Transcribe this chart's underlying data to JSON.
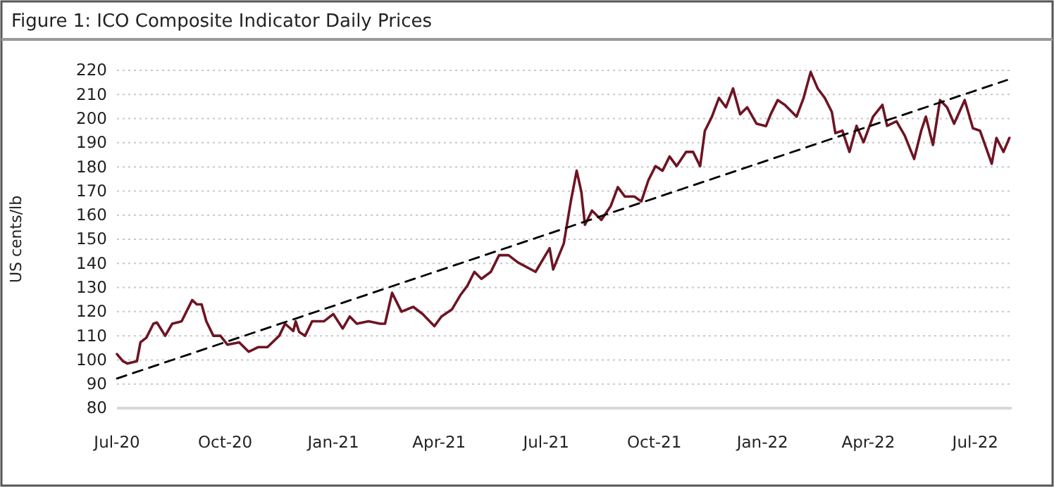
{
  "chart_data": {
    "type": "line",
    "title": "Figure 1: ICO Composite Indicator Daily Prices",
    "ylabel": "US cents/lb",
    "xlim": [
      "2020-07-01",
      "2022-08-01"
    ],
    "xticks": [
      {
        "value": "2020-07-01",
        "label": "Jul-20"
      },
      {
        "value": "2020-10-01",
        "label": "Oct-20"
      },
      {
        "value": "2021-01-01",
        "label": "Jan-21"
      },
      {
        "value": "2021-04-01",
        "label": "Apr-21"
      },
      {
        "value": "2021-07-01",
        "label": "Jul-21"
      },
      {
        "value": "2021-10-01",
        "label": "Oct-21"
      },
      {
        "value": "2022-01-01",
        "label": "Jan-22"
      },
      {
        "value": "2022-04-01",
        "label": "Apr-22"
      },
      {
        "value": "2022-07-01",
        "label": "Jul-22"
      }
    ],
    "ylim": [
      80,
      220
    ],
    "yticks": [
      80,
      90,
      100,
      110,
      120,
      130,
      140,
      150,
      160,
      170,
      180,
      190,
      200,
      210,
      220
    ],
    "grid": "y",
    "series": [
      {
        "color": "#6e1423",
        "line_style": "solid",
        "x": [
          "2020-07-01",
          "2020-07-06",
          "2020-07-10",
          "2020-07-18",
          "2020-07-21",
          "2020-07-26",
          "2020-08-01",
          "2020-08-04",
          "2020-08-11",
          "2020-08-17",
          "2020-08-25",
          "2020-09-03",
          "2020-09-07",
          "2020-09-11",
          "2020-09-15",
          "2020-09-21",
          "2020-09-27",
          "2020-10-03",
          "2020-10-13",
          "2020-10-21",
          "2020-10-29",
          "2020-11-06",
          "2020-11-16",
          "2020-11-21",
          "2020-11-28",
          "2020-11-30",
          "2020-12-03",
          "2020-12-08",
          "2020-12-14",
          "2020-12-24",
          "2021-01-01",
          "2021-01-09",
          "2021-01-15",
          "2021-01-21",
          "2021-01-31",
          "2021-02-10",
          "2021-02-14",
          "2021-02-20",
          "2021-02-28",
          "2021-03-10",
          "2021-03-18",
          "2021-03-28",
          "2021-04-03",
          "2021-04-12",
          "2021-04-19",
          "2021-04-25",
          "2021-05-01",
          "2021-05-07",
          "2021-05-15",
          "2021-05-22",
          "2021-05-30",
          "2021-06-07",
          "2021-06-22",
          "2021-07-04",
          "2021-07-07",
          "2021-07-16",
          "2021-07-22",
          "2021-07-27",
          "2021-07-31",
          "2021-08-03",
          "2021-08-09",
          "2021-08-17",
          "2021-08-25",
          "2021-08-31",
          "2021-09-06",
          "2021-09-14",
          "2021-09-20",
          "2021-09-26",
          "2021-10-02",
          "2021-10-08",
          "2021-10-14",
          "2021-10-20",
          "2021-10-28",
          "2021-11-03",
          "2021-11-09",
          "2021-11-13",
          "2021-11-19",
          "2021-11-25",
          "2021-12-01",
          "2021-12-07",
          "2021-12-13",
          "2021-12-19",
          "2021-12-27",
          "2022-01-04",
          "2022-01-08",
          "2022-01-14",
          "2022-01-20",
          "2022-01-26",
          "2022-01-30",
          "2022-02-05",
          "2022-02-11",
          "2022-02-17",
          "2022-02-23",
          "2022-03-01",
          "2022-03-04",
          "2022-03-10",
          "2022-03-16",
          "2022-03-22",
          "2022-03-28",
          "2022-04-05",
          "2022-04-13",
          "2022-04-17",
          "2022-04-25",
          "2022-05-02",
          "2022-05-10",
          "2022-05-16",
          "2022-05-20",
          "2022-05-26",
          "2022-06-01",
          "2022-06-07",
          "2022-06-13",
          "2022-06-22",
          "2022-06-29",
          "2022-07-05",
          "2022-07-15",
          "2022-07-19",
          "2022-07-25",
          "2022-07-30"
        ],
        "values": [
          102.4,
          99.5,
          98.5,
          99.5,
          107.3,
          109.2,
          115,
          115.5,
          110,
          115,
          116,
          124.8,
          123,
          123,
          116,
          110,
          110,
          106.3,
          107.3,
          103.4,
          105.3,
          105.3,
          110,
          115,
          112,
          116,
          111.6,
          110,
          116,
          116,
          119,
          113,
          118,
          115,
          116,
          115,
          115,
          127.8,
          120,
          122,
          119,
          114,
          118,
          121,
          126.8,
          130.7,
          136.5,
          133.6,
          136.5,
          143.4,
          143.4,
          140.4,
          136.5,
          146.3,
          137.5,
          148.2,
          165.7,
          178.4,
          169.6,
          156,
          161.9,
          158,
          163.8,
          171.6,
          167.7,
          167.7,
          165.7,
          174.5,
          180.3,
          178.4,
          184.3,
          180.3,
          186.2,
          186.2,
          180.3,
          194.9,
          200.8,
          208.6,
          204.7,
          212.5,
          201.8,
          204.7,
          197.9,
          196.9,
          201.8,
          207.7,
          205.7,
          202.8,
          200.8,
          208.6,
          219.3,
          212.5,
          208.6,
          202.8,
          194,
          195,
          186.2,
          197,
          190.2,
          200.8,
          205.7,
          197,
          198.9,
          193,
          183.3,
          195,
          200.8,
          189.1,
          207.7,
          204.7,
          197.9,
          207.7,
          196,
          195,
          181.3,
          192,
          186.2,
          192
        ]
      },
      {
        "color": "#000000",
        "line_style": "dashed",
        "x": [
          "2020-07-01",
          "2022-07-28"
        ],
        "values": [
          92.3,
          216
        ]
      }
    ]
  }
}
